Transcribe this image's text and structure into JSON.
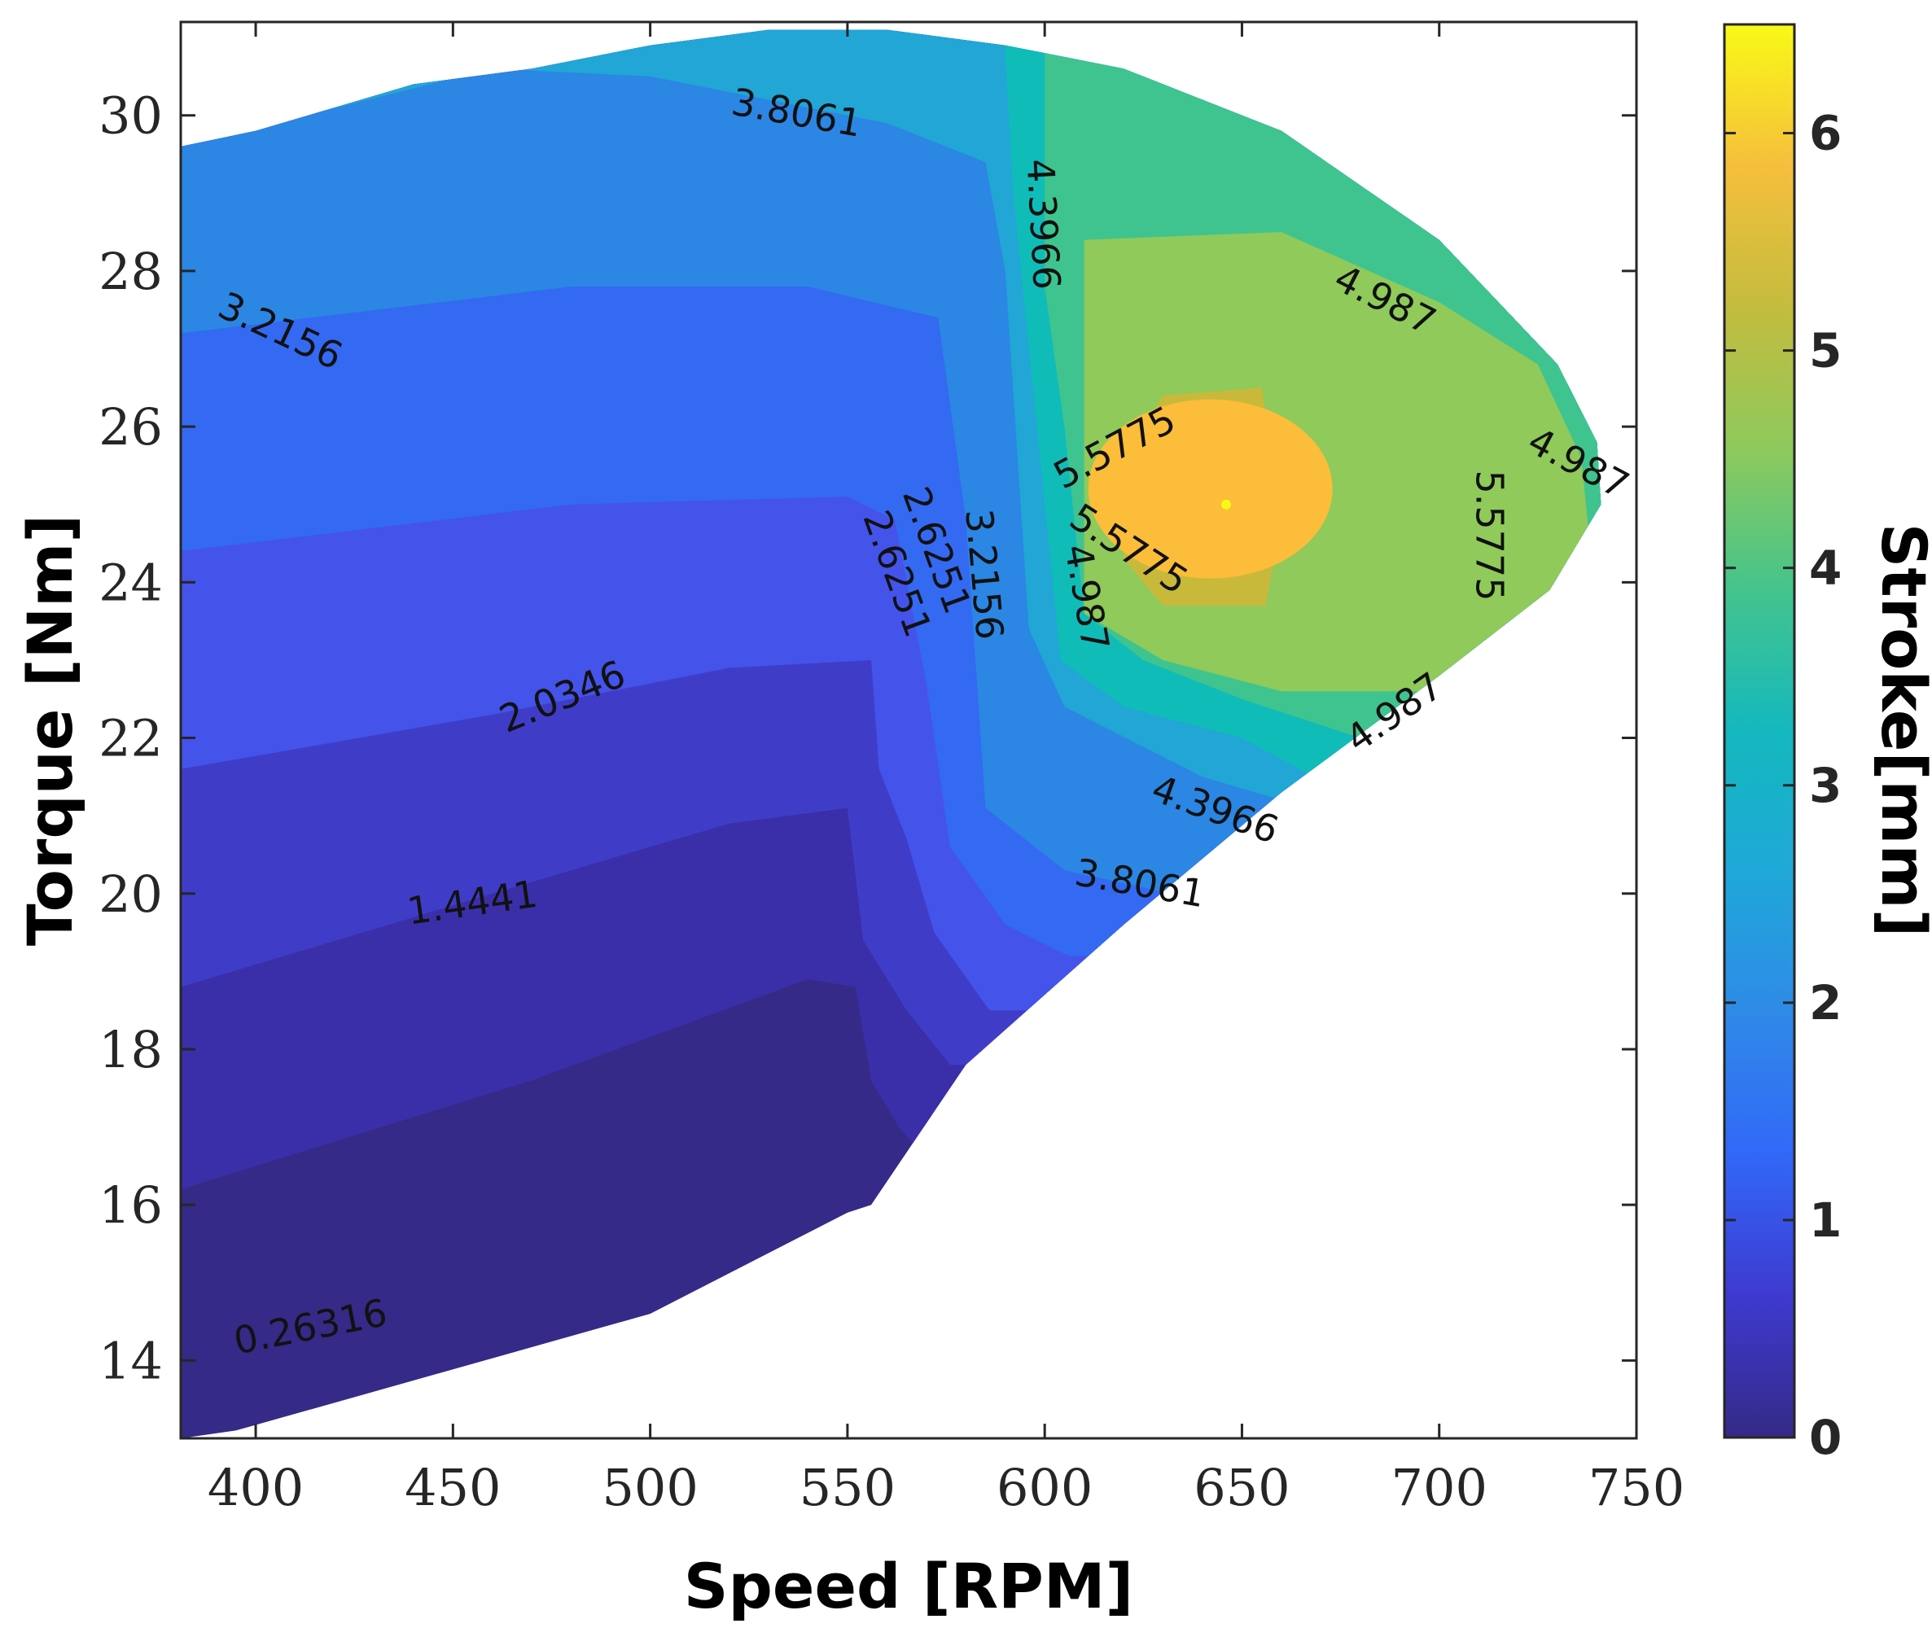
{
  "chart_data": {
    "type": "heatmap",
    "subtype": "filled-contour",
    "title": "",
    "xlabel": "Speed [RPM]",
    "ylabel": "Torque [Nm]",
    "colorbar_label": "Stroke[mm]",
    "xlim": [
      381,
      750
    ],
    "ylim": [
      13,
      31.2
    ],
    "clim": [
      0,
      6.5
    ],
    "x_ticks": [
      400,
      450,
      500,
      550,
      600,
      650,
      700,
      750
    ],
    "y_ticks": [
      14,
      16,
      18,
      20,
      22,
      24,
      26,
      28,
      30
    ],
    "colorbar_ticks": [
      0,
      1,
      2,
      3,
      4,
      5,
      6
    ],
    "colormap": "parula",
    "colormap_stops": [
      "#352a87",
      "#3e3ad0",
      "#3168f8",
      "#2f8ae8",
      "#1fa8d8",
      "#14b8be",
      "#44c48c",
      "#8ec95c",
      "#c4bc3e",
      "#f5bf3c",
      "#f9f916"
    ],
    "feasible_region_boundary": [
      [
        381,
        13
      ],
      [
        395,
        13.1
      ],
      [
        500,
        14.6
      ],
      [
        550,
        15.9
      ],
      [
        556,
        16
      ],
      [
        580,
        17.8
      ],
      [
        620,
        19.6
      ],
      [
        660,
        21.3
      ],
      [
        700,
        22.8
      ],
      [
        728,
        23.9
      ],
      [
        741,
        25
      ],
      [
        740,
        25.8
      ],
      [
        730,
        26.8
      ],
      [
        700,
        28.4
      ],
      [
        660,
        29.8
      ],
      [
        620,
        30.6
      ],
      [
        590,
        30.9
      ],
      [
        560,
        31.1
      ],
      [
        530,
        31.1
      ],
      [
        500,
        30.9
      ],
      [
        470,
        30.6
      ],
      [
        440,
        30.4
      ],
      [
        400,
        29.8
      ],
      [
        381,
        29.6
      ]
    ],
    "contour_levels": [
      {
        "value": 0.26316,
        "label": "0.26316",
        "label_pos": [
          414,
          14.4
        ],
        "angle": -11,
        "fill": "#3a2fa8",
        "boundary": [
          [
            381,
            16.2
          ],
          [
            470,
            17.6
          ],
          [
            540,
            18.9
          ],
          [
            552,
            18.8
          ],
          [
            556,
            17.6
          ],
          [
            563,
            17
          ],
          [
            570,
            16.6
          ]
        ]
      },
      {
        "value": 0.85,
        "label": "",
        "label_pos": null,
        "angle": 0,
        "fill": "#3f3dc8",
        "boundary": [
          [
            381,
            18.8
          ],
          [
            460,
            20
          ],
          [
            520,
            20.9
          ],
          [
            550,
            21.1
          ],
          [
            554,
            19.4
          ],
          [
            565,
            18.5
          ],
          [
            576,
            17.8
          ]
        ]
      },
      {
        "value": 1.4441,
        "label": "1.4441",
        "label_pos": [
          455,
          19.85
        ],
        "angle": -8,
        "fill": "#4453ea",
        "boundary": [
          [
            381,
            21.6
          ],
          [
            460,
            22.3
          ],
          [
            520,
            22.9
          ],
          [
            556,
            23
          ],
          [
            558,
            21.6
          ],
          [
            565,
            20.7
          ],
          [
            572,
            19.5
          ],
          [
            586,
            18.5
          ]
        ]
      },
      {
        "value": 2.0346,
        "label": "2.0346",
        "label_pos": [
          478,
          22.5
        ],
        "angle": -22,
        "fill": "#3469f2",
        "boundary": [
          [
            381,
            24.4
          ],
          [
            480,
            25
          ],
          [
            550,
            25.1
          ],
          [
            562,
            24.8
          ],
          [
            570,
            22.7
          ],
          [
            576,
            20.6
          ],
          [
            590,
            19.6
          ],
          [
            606,
            19.2
          ]
        ]
      },
      {
        "value": 2.6251,
        "label": "2.6251",
        "label_pos": [
          562,
          24.1
        ],
        "angle": 70,
        "fill": "#2b86e4",
        "boundary": [
          [
            381,
            27.2
          ],
          [
            480,
            27.8
          ],
          [
            540,
            27.8
          ],
          [
            573,
            27.4
          ],
          [
            580,
            24.8
          ],
          [
            585,
            21.1
          ],
          [
            605,
            20.3
          ],
          [
            632,
            20
          ]
        ]
      },
      {
        "value": 3.2156,
        "label": "3.2156",
        "label_pos": [
          406,
          27.2
        ],
        "angle": 25,
        "fill": "#21a6d6",
        "boundary": [
          [
            381,
            29.6
          ],
          [
            460,
            30.6
          ],
          [
            500,
            30.5
          ],
          [
            560,
            29.9
          ],
          [
            585,
            29.4
          ],
          [
            590,
            28
          ],
          [
            596,
            23.4
          ],
          [
            605,
            22.4
          ],
          [
            640,
            21.5
          ],
          [
            660,
            21.2
          ]
        ]
      },
      {
        "value": 3.8061,
        "label": "3.8061",
        "label_pos": [
          537,
          30
        ],
        "angle": 10,
        "fill": "#10bcb8",
        "boundary": [
          [
            590,
            30.8
          ],
          [
            592,
            29
          ],
          [
            598,
            26
          ],
          [
            604,
            23
          ],
          [
            620,
            22.4
          ],
          [
            650,
            22
          ],
          [
            672,
            21.4
          ]
        ]
      },
      {
        "value": 4.3966,
        "label": "4.3966",
        "label_pos": [
          599,
          28.6
        ],
        "angle": 87,
        "fill": "#3fc48f",
        "boundary": [
          [
            600,
            27.8
          ],
          [
            605,
            26
          ],
          [
            610,
            23.6
          ],
          [
            625,
            23
          ],
          [
            650,
            22.5
          ],
          [
            680,
            22
          ]
        ]
      },
      {
        "value": 4.987,
        "label": "4.987",
        "label_pos": [
          686,
          27.6
        ],
        "angle": 27,
        "fill": "#8fca5a",
        "boundary": [
          [
            610,
            28.4
          ],
          [
            660,
            28.5
          ],
          [
            700,
            27.6
          ],
          [
            725,
            26.8
          ],
          [
            736,
            25.6
          ],
          [
            738,
            24.6
          ],
          [
            725,
            23.6
          ],
          [
            700,
            22.6
          ],
          [
            660,
            22.6
          ],
          [
            630,
            23
          ],
          [
            610,
            23.6
          ]
        ]
      },
      {
        "value": 5.5775,
        "label": "5.5775",
        "label_pos": [
          618,
          25.7
        ],
        "angle": -28,
        "fill": "#c9b93a",
        "boundary": [
          [
            620,
            25.6
          ],
          [
            630,
            26.4
          ],
          [
            655,
            26.5
          ],
          [
            660,
            24.8
          ],
          [
            656,
            23.7
          ],
          [
            630,
            23.7
          ],
          [
            620,
            24.3
          ]
        ]
      },
      {
        "value": 6.1,
        "label": "",
        "label_pos": null,
        "angle": 0,
        "fill": "#fbbd3a",
        "boundary": []
      }
    ],
    "extra_labels": [
      {
        "text": "2.6251",
        "pos": [
          572,
          24.4
        ],
        "angle": 70
      },
      {
        "text": "3.2156",
        "pos": [
          584,
          24.1
        ],
        "angle": 85
      },
      {
        "text": "4.987",
        "pos": [
          610,
          23.8
        ],
        "angle": 80
      },
      {
        "text": "5.5775",
        "pos": [
          621,
          24.4
        ],
        "angle": 33
      },
      {
        "text": "5.5775",
        "pos": [
          712,
          24.6
        ],
        "angle": 90
      },
      {
        "text": "4.987",
        "pos": [
          735,
          25.5
        ],
        "angle": 28
      },
      {
        "text": "4.987",
        "pos": [
          689,
          22.3
        ],
        "angle": -35
      },
      {
        "text": "4.3966",
        "pos": [
          643,
          21.05
        ],
        "angle": 20
      },
      {
        "text": "3.8061",
        "pos": [
          624,
          20.1
        ],
        "angle": 10
      },
      {
        "text": "2.0346",
        "pos": [
          478,
          22.5
        ],
        "angle": -22
      }
    ]
  }
}
